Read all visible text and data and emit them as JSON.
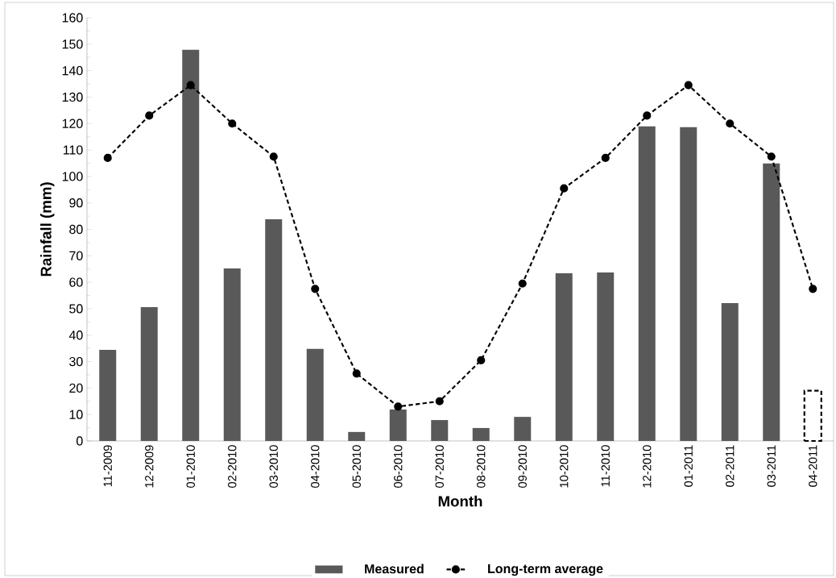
{
  "chart_data": {
    "type": "bar",
    "xlabel": "Month",
    "ylabel": "Rainfall (mm)",
    "categories": [
      "11-2009",
      "12-2009",
      "01-2010",
      "02-2010",
      "03-2010",
      "04-2010",
      "05-2010",
      "06-2010",
      "07-2010",
      "08-2010",
      "09-2010",
      "10-2010",
      "11-2010",
      "12-2010",
      "01-2011",
      "02-2011",
      "03-2011",
      "04-2011"
    ],
    "series": [
      {
        "name": "Measured",
        "color": "#595959",
        "values": [
          34.4,
          50.6,
          147.9,
          65.2,
          83.8,
          34.8,
          3.4,
          11.9,
          7.9,
          4.9,
          9.1,
          63.4,
          63.7,
          118.9,
          118.6,
          52.1,
          104.9,
          null
        ]
      },
      {
        "color": "#ffffff",
        "line_style": "dashed",
        "values": [
          null,
          null,
          null,
          null,
          null,
          null,
          null,
          null,
          null,
          null,
          null,
          null,
          null,
          null,
          null,
          null,
          null,
          19
        ]
      },
      {
        "name": "Long-term average",
        "type": "line",
        "color": "#000000",
        "marker": "circle",
        "line_style": "dashed",
        "values": [
          107,
          123,
          134.5,
          120,
          107.5,
          57.5,
          25.5,
          13,
          15,
          30.5,
          59.5,
          95.5,
          107,
          123,
          134.5,
          120,
          107.5,
          57.5
        ]
      }
    ],
    "ylim": [
      0,
      160
    ],
    "yticks": [
      0,
      10,
      20,
      30,
      40,
      50,
      60,
      70,
      80,
      90,
      100,
      110,
      120,
      130,
      140,
      150,
      160
    ],
    "grid": false,
    "legend": "bottom"
  }
}
